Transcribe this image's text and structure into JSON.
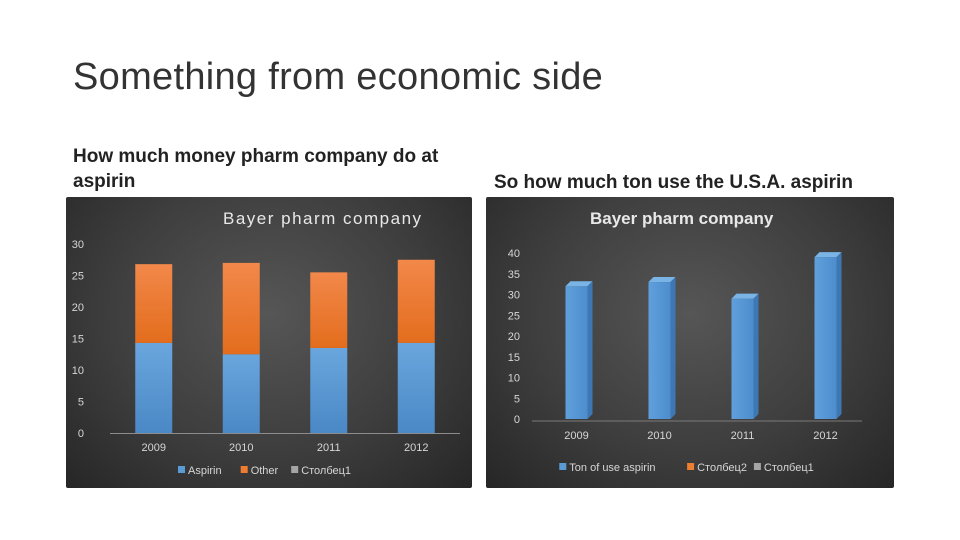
{
  "slide": {
    "title": "Something from economic side",
    "left_caption": "How much money pharm company do at aspirin",
    "right_caption": "So how much ton use the U.S.A. aspirin"
  },
  "chart_data": [
    {
      "type": "bar",
      "stacked": true,
      "title": "Bayer pharm company",
      "categories": [
        "2009",
        "2010",
        "2011",
        "2012"
      ],
      "series": [
        {
          "name": "Aspirin",
          "values": [
            14.3,
            12.5,
            13.5,
            14.3
          ],
          "color": "#5b9bd5"
        },
        {
          "name": "Other",
          "values": [
            12.5,
            14.5,
            12.0,
            13.2
          ],
          "color": "#ed7d31"
        },
        {
          "name": "Столбец1",
          "values": [
            0,
            0,
            0,
            0
          ],
          "color": "#a5a5a5"
        }
      ],
      "ylim": [
        0,
        30
      ],
      "yticks": [
        0,
        5,
        10,
        15,
        20,
        25,
        30
      ],
      "grid": false,
      "legend": "bottom"
    },
    {
      "type": "bar",
      "three_d": true,
      "title": "Bayer pharm company",
      "categories": [
        "2009",
        "2010",
        "2011",
        "2012"
      ],
      "series": [
        {
          "name": "Ton of use aspirin",
          "values": [
            32,
            33,
            29,
            39
          ],
          "color": "#5b9bd5"
        },
        {
          "name": "Столбец2",
          "values": [
            0,
            0,
            0,
            0
          ],
          "color": "#ed7d31"
        },
        {
          "name": "Столбец1",
          "values": [
            0,
            0,
            0,
            0
          ],
          "color": "#a5a5a5"
        }
      ],
      "ylim": [
        0,
        40
      ],
      "yticks": [
        0,
        5,
        10,
        15,
        20,
        25,
        30,
        35,
        40
      ],
      "grid": false,
      "legend": "bottom"
    }
  ]
}
